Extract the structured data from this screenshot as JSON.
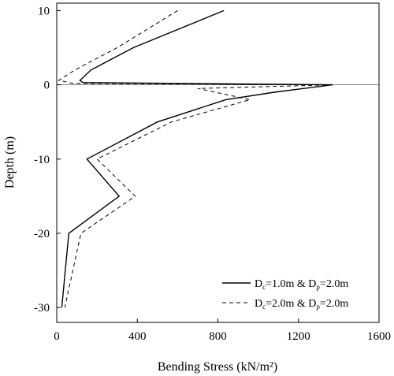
{
  "chart_data": {
    "type": "line",
    "xlabel": "Bending Stress (kN/m²)",
    "ylabel": "Depth (m)",
    "xlim": [
      0,
      1600
    ],
    "ylim": [
      -32,
      11
    ],
    "xticks": [
      "0",
      "400",
      "800",
      "1200",
      "1600"
    ],
    "xtick_values": [
      0,
      400,
      800,
      1200,
      1600
    ],
    "yticks": [
      "10",
      "0",
      "-10",
      "-20",
      "-30"
    ],
    "ytick_values": [
      10,
      0,
      -10,
      -20,
      -30
    ],
    "reference_line_y": 0,
    "legend_position": "bottom-right",
    "series": [
      {
        "name": "Dc=1.0m & Dp=2.0m",
        "legend": {
          "a": "D",
          "a_sub": "c",
          "mid": "=1.0m & D",
          "b_sub": "p",
          "end": "=2.0m"
        },
        "style": "solid",
        "color": "#000000",
        "points": [
          {
            "x": 830,
            "y": 10
          },
          {
            "x": 380,
            "y": 5
          },
          {
            "x": 170,
            "y": 2
          },
          {
            "x": 115,
            "y": 0.6
          },
          {
            "x": 130,
            "y": 0.3
          },
          {
            "x": 1370,
            "y": 0
          },
          {
            "x": 1080,
            "y": -1
          },
          {
            "x": 840,
            "y": -2
          },
          {
            "x": 500,
            "y": -5
          },
          {
            "x": 150,
            "y": -10
          },
          {
            "x": 310,
            "y": -15
          },
          {
            "x": 60,
            "y": -20
          },
          {
            "x": 25,
            "y": -30
          }
        ]
      },
      {
        "name": "Dc=2.0m & Dp=2.0m",
        "legend": {
          "a": "D",
          "a_sub": "c",
          "mid": "=2.0m & D",
          "b_sub": "p",
          "end": "=2.0m"
        },
        "style": "dashed",
        "color": "#000000",
        "points": [
          {
            "x": 600,
            "y": 10
          },
          {
            "x": 300,
            "y": 5
          },
          {
            "x": 90,
            "y": 2
          },
          {
            "x": 10,
            "y": 0.6
          },
          {
            "x": 80,
            "y": 0.2
          },
          {
            "x": 1370,
            "y": 0
          },
          {
            "x": 700,
            "y": -0.5
          },
          {
            "x": 960,
            "y": -2
          },
          {
            "x": 570,
            "y": -5
          },
          {
            "x": 200,
            "y": -10
          },
          {
            "x": 390,
            "y": -15
          },
          {
            "x": 120,
            "y": -20
          },
          {
            "x": 40,
            "y": -30
          }
        ]
      }
    ]
  }
}
